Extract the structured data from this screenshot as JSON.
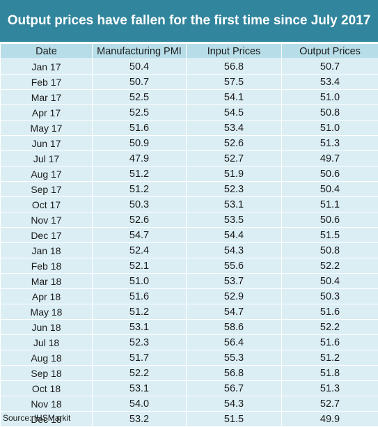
{
  "title": "Output prices have fallen for the first time since July 2017",
  "source": "Source: IHSMarkit",
  "colors": {
    "banner": "#31859c",
    "header_row": "#b7dde8",
    "cell": "#dbeef4"
  },
  "chart_data": {
    "type": "table",
    "title": "Output prices have fallen for the first time since July 2017",
    "columns": [
      "Date",
      "Manufacturing PMI",
      "Input Prices",
      "Output Prices"
    ],
    "rows": [
      [
        "Jan 17",
        "50.4",
        "56.8",
        "50.7"
      ],
      [
        "Feb 17",
        "50.7",
        "57.5",
        "53.4"
      ],
      [
        "Mar 17",
        "52.5",
        "54.1",
        "51.0"
      ],
      [
        "Apr 17",
        "52.5",
        "54.5",
        "50.8"
      ],
      [
        "May 17",
        "51.6",
        "53.4",
        "51.0"
      ],
      [
        "Jun 17",
        "50.9",
        "52.6",
        "51.3"
      ],
      [
        "Jul 17",
        "47.9",
        "52.7",
        "49.7"
      ],
      [
        "Aug 17",
        "51.2",
        "51.9",
        "50.6"
      ],
      [
        "Sep 17",
        "51.2",
        "52.3",
        "50.4"
      ],
      [
        "Oct 17",
        "50.3",
        "53.1",
        "51.1"
      ],
      [
        "Nov 17",
        "52.6",
        "53.5",
        "50.6"
      ],
      [
        "Dec 17",
        "54.7",
        "54.4",
        "51.5"
      ],
      [
        "Jan 18",
        "52.4",
        "54.3",
        "50.8"
      ],
      [
        "Feb 18",
        "52.1",
        "55.6",
        "52.2"
      ],
      [
        "Mar 18",
        "51.0",
        "53.7",
        "50.4"
      ],
      [
        "Apr 18",
        "51.6",
        "52.9",
        "50.3"
      ],
      [
        "May 18",
        "51.2",
        "54.7",
        "51.6"
      ],
      [
        "Jun 18",
        "53.1",
        "58.6",
        "52.2"
      ],
      [
        "Jul 18",
        "52.3",
        "56.4",
        "51.6"
      ],
      [
        "Aug 18",
        "51.7",
        "55.3",
        "51.2"
      ],
      [
        "Sep 18",
        "52.2",
        "56.8",
        "51.8"
      ],
      [
        "Oct 18",
        "53.1",
        "56.7",
        "51.3"
      ],
      [
        "Nov 18",
        "54.0",
        "54.3",
        "52.7"
      ],
      [
        "Dec 18",
        "53.2",
        "51.5",
        "49.9"
      ]
    ]
  }
}
